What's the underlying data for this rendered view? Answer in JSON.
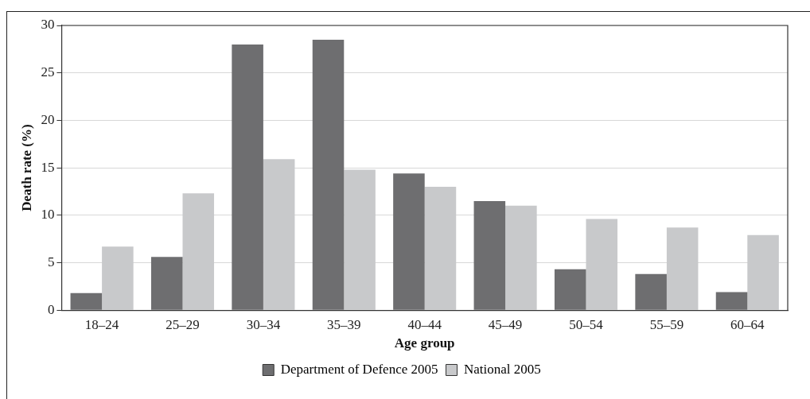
{
  "chart_data": {
    "type": "bar",
    "xlabel": "Age group",
    "ylabel": "Death rate (%)",
    "categories": [
      "18–24",
      "25–29",
      "30–34",
      "35–39",
      "40–44",
      "45–49",
      "50–54",
      "55–59",
      "60–64"
    ],
    "series": [
      {
        "name": "Department of Defence 2005",
        "color": "#6e6e70",
        "values": [
          1.8,
          5.6,
          28.0,
          28.5,
          14.4,
          11.5,
          4.3,
          3.8,
          1.9
        ]
      },
      {
        "name": "National 2005",
        "color": "#c8c9cb",
        "values": [
          6.7,
          12.3,
          15.9,
          14.8,
          13.0,
          11.0,
          9.6,
          8.7,
          7.9
        ]
      }
    ],
    "ylim": [
      0,
      30
    ],
    "yticks": [
      0,
      5,
      10,
      15,
      20,
      25,
      30
    ],
    "grid": "y",
    "legend": "bottom"
  }
}
